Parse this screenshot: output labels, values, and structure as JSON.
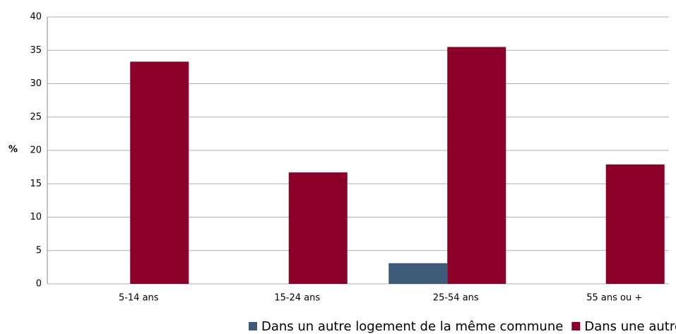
{
  "chart_data": {
    "type": "bar",
    "categories": [
      "5-14 ans",
      "15-24 ans",
      "25-54 ans",
      "55 ans ou +"
    ],
    "series": [
      {
        "name": "Dans un autre logement de la même commune",
        "color": "#3d5a78",
        "values": [
          0,
          0,
          3.1,
          0
        ]
      },
      {
        "name": "Dans une autre commune",
        "color": "#8b0029",
        "values": [
          33.3,
          16.7,
          35.5,
          17.9
        ]
      }
    ],
    "y_label": "%",
    "ylim": [
      0,
      40
    ],
    "yticks": [
      0,
      5,
      10,
      15,
      20,
      25,
      30,
      35,
      40
    ],
    "grid": true,
    "legend": "bottom"
  }
}
